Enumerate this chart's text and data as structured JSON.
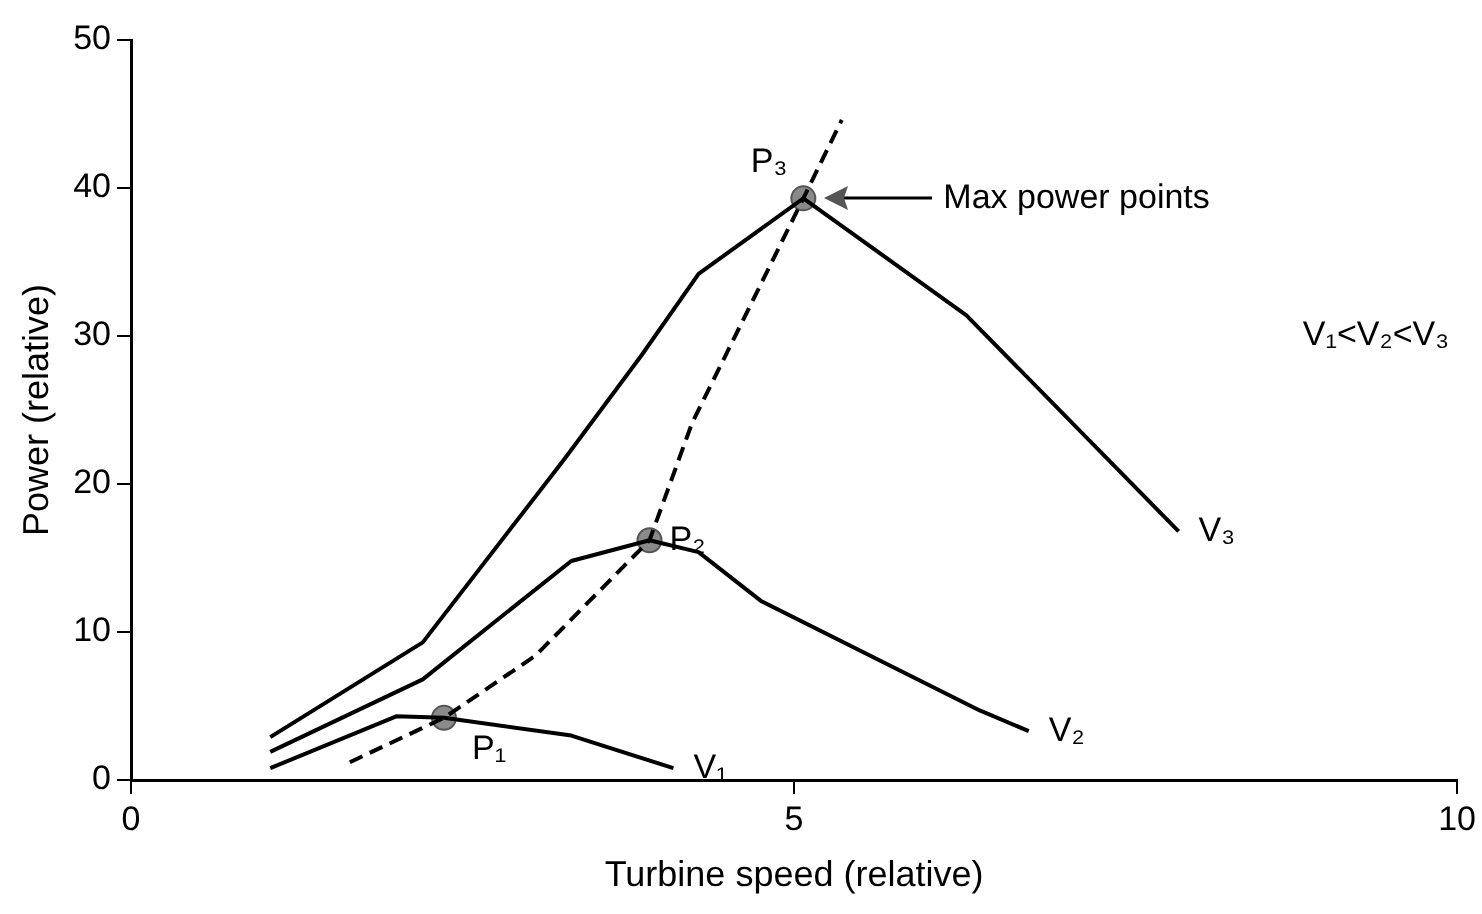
{
  "chart_data": {
    "type": "line",
    "xlabel": "Turbine speed (relative)",
    "ylabel": "Power (relative)",
    "xlim": [
      0,
      10
    ],
    "xticks": [
      0,
      5,
      10
    ],
    "ylim": [
      0,
      50
    ],
    "yticks": [
      0,
      10,
      20,
      30,
      40,
      50
    ],
    "grid": false,
    "legend": false,
    "marker": "none",
    "series": [
      {
        "name": "V₁",
        "color": "#000000",
        "x": [
          1.05,
          2.0,
          2.36,
          3.32,
          4.09
        ],
        "values": [
          0.8,
          4.3,
          4.2,
          3.0,
          0.8
        ]
      },
      {
        "name": "V₂",
        "color": "#000000",
        "x": [
          1.05,
          2.2,
          3.32,
          3.91,
          4.28,
          4.75,
          6.4,
          6.77
        ],
        "values": [
          1.9,
          6.8,
          14.8,
          16.2,
          15.4,
          12.1,
          4.7,
          3.3
        ]
      },
      {
        "name": "V₃",
        "color": "#000000",
        "x": [
          1.05,
          2.2,
          3.27,
          3.85,
          4.28,
          5.07,
          6.3,
          7.9
        ],
        "values": [
          2.9,
          9.3,
          21.7,
          28.7,
          34.2,
          39.3,
          31.4,
          16.8
        ]
      },
      {
        "color": "#000000",
        "line_style": "dashed",
        "x": [
          1.65,
          2.36,
          3.05,
          3.91,
          4.23,
          5.07,
          5.36
        ],
        "values": [
          1.2,
          4.2,
          8.4,
          16.2,
          24.1,
          39.3,
          44.6
        ]
      },
      {
        "type": "scatter",
        "marker": "circle",
        "color": "#8a8a8a",
        "x": [
          2.36,
          3.91,
          5.07
        ],
        "values": [
          4.2,
          16.2,
          39.3
        ]
      }
    ],
    "annotations": [
      {
        "text": "P₁",
        "x": 2.36,
        "y": 4.2
      },
      {
        "text": "P₂",
        "x": 3.91,
        "y": 16.2
      },
      {
        "text": "P₃",
        "x": 5.07,
        "y": 39.3
      },
      "Max power points",
      "V₁<V₂<V₃"
    ]
  }
}
